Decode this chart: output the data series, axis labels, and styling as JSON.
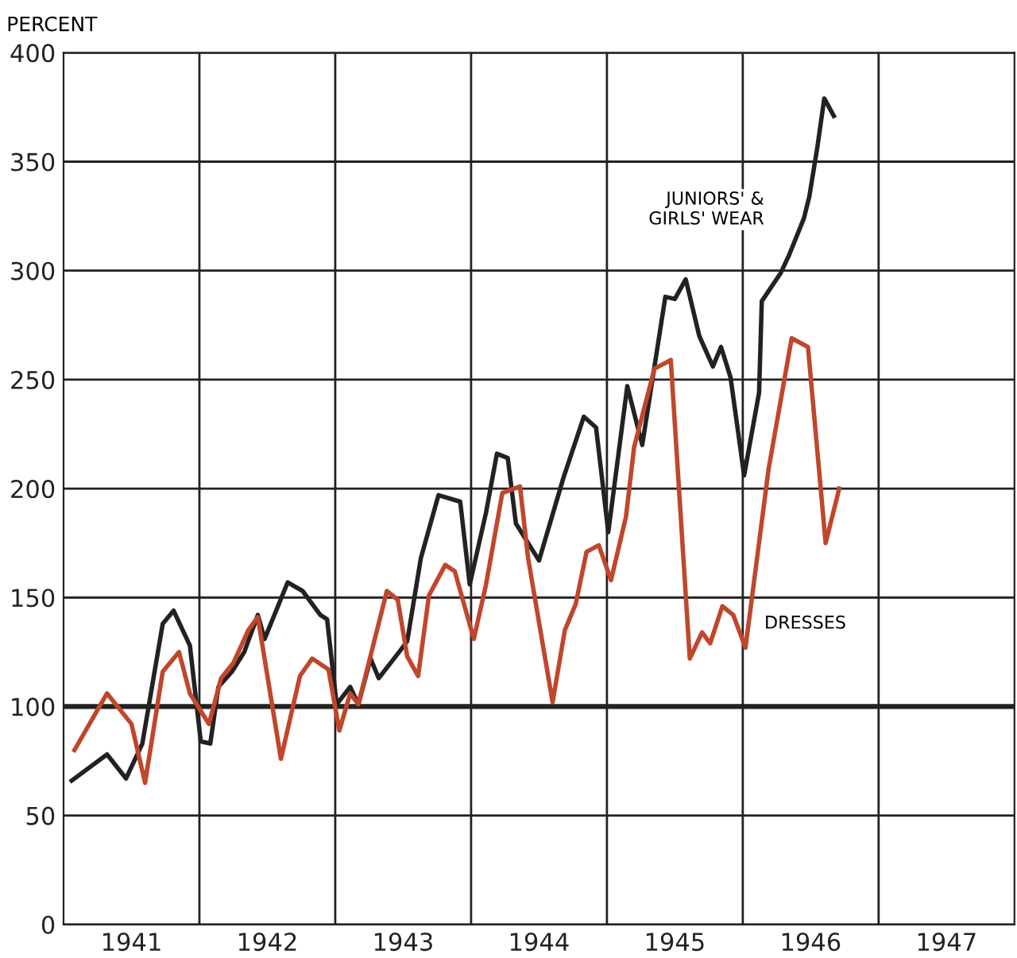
{
  "chart_data": {
    "type": "line",
    "ylabel": "PERCENT",
    "xlim": [
      1941,
      1948
    ],
    "ylim": [
      0,
      400
    ],
    "xticks": [
      {
        "value": 1941.5,
        "label": "1941"
      },
      {
        "value": 1942,
        "label": null
      },
      {
        "value": 1942.5,
        "label": "1942"
      },
      {
        "value": 1943,
        "label": null
      },
      {
        "value": 1943.5,
        "label": "1943"
      },
      {
        "value": 1944,
        "label": null
      },
      {
        "value": 1944.5,
        "label": "1944"
      },
      {
        "value": 1945,
        "label": null
      },
      {
        "value": 1945.5,
        "label": "1945"
      },
      {
        "value": 1946,
        "label": null
      },
      {
        "value": 1946.5,
        "label": "1946"
      },
      {
        "value": 1947,
        "label": null
      },
      {
        "value": 1947.5,
        "label": "1947"
      }
    ],
    "yticks": [
      0,
      50,
      100,
      150,
      200,
      250,
      300,
      350,
      400
    ],
    "grid": true,
    "line_style": "solid",
    "ref_lines": [
      {
        "axis": "y",
        "value": 100,
        "color": "#222222"
      }
    ],
    "series": [
      {
        "color": "#222222",
        "x": [
          1941.06,
          1941.32,
          1941.46,
          1941.58,
          1941.73,
          1941.81,
          1941.93,
          1942.01,
          1942.08,
          1942.14,
          1942.24,
          1942.33,
          1942.43,
          1942.48,
          1942.65,
          1942.76,
          1942.89,
          1942.94,
          1943.01,
          1943.11,
          1943.17,
          1943.26,
          1943.32,
          1943.47,
          1943.53,
          1943.63,
          1943.76,
          1943.92,
          1943.99,
          1944.11,
          1944.19,
          1944.27,
          1944.33,
          1944.5,
          1944.68,
          1944.83,
          1944.92,
          1945.01,
          1945.15,
          1945.26,
          1945.43,
          1945.5,
          1945.58,
          1945.68,
          1945.78,
          1945.84,
          1945.91,
          1946.01,
          1946.12,
          1946.14,
          1946.28,
          1946.34,
          1946.45,
          1946.49,
          1946.55,
          1946.6,
          1946.67
        ],
        "values": [
          66,
          78,
          67,
          83,
          138,
          144,
          128,
          84,
          83,
          109,
          116,
          125,
          142,
          131,
          157,
          153,
          142,
          140,
          101,
          109,
          101,
          122,
          113,
          125,
          130,
          168,
          197,
          194,
          156,
          189,
          216,
          214,
          184,
          167,
          205,
          233,
          228,
          180,
          247,
          220,
          288,
          287,
          296,
          270,
          256,
          265,
          251,
          206,
          244,
          286,
          299,
          307,
          324,
          334,
          357,
          379,
          371
        ]
      },
      {
        "color": "#c0462c",
        "x": [
          1941.08,
          1941.32,
          1941.5,
          1941.6,
          1941.73,
          1941.85,
          1941.93,
          1942.07,
          1942.16,
          1942.25,
          1942.36,
          1942.43,
          1942.6,
          1942.74,
          1942.83,
          1942.95,
          1943.03,
          1943.11,
          1943.17,
          1943.38,
          1943.46,
          1943.53,
          1943.61,
          1943.69,
          1943.81,
          1943.88,
          1944.02,
          1944.11,
          1944.23,
          1944.36,
          1944.42,
          1944.6,
          1944.69,
          1944.77,
          1944.85,
          1944.94,
          1945.03,
          1945.14,
          1945.2,
          1945.35,
          1945.47,
          1945.61,
          1945.7,
          1945.76,
          1945.85,
          1945.93,
          1946.02,
          1946.19,
          1946.36,
          1946.48,
          1946.61,
          1946.71
        ],
        "values": [
          80,
          106,
          92,
          65,
          116,
          125,
          106,
          92,
          113,
          120,
          135,
          141,
          76,
          114,
          122,
          117,
          89,
          106,
          101,
          153,
          149,
          123,
          114,
          151,
          165,
          162,
          131,
          156,
          198,
          201,
          168,
          102,
          135,
          147,
          171,
          174,
          158,
          187,
          219,
          255,
          259,
          122,
          134,
          129,
          146,
          142,
          127,
          209,
          269,
          265,
          175,
          200
        ]
      }
    ],
    "annotations": [
      "JUNIORS' &\nGIRLS' WEAR",
      "DRESSES"
    ]
  }
}
